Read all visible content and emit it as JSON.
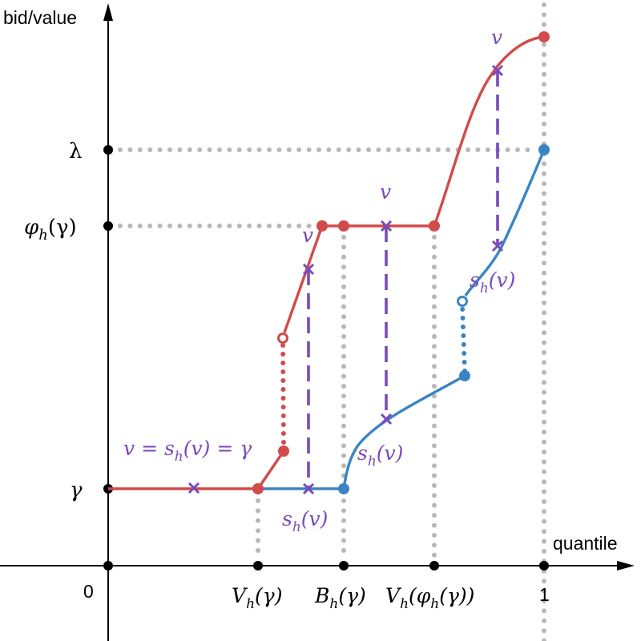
{
  "axes": {
    "y_label": "bid/value",
    "x_label": "quantile"
  },
  "y_ticks": {
    "lambda": "λ",
    "phi_h": "φ",
    "phi_sub": "h",
    "phi_arg": "(γ)",
    "gamma": "γ",
    "zero": "0"
  },
  "x_ticks": {
    "v_gamma": {
      "base": "V",
      "sub": "h",
      "arg": "(γ)"
    },
    "b_gamma": {
      "base": "B",
      "sub": "h",
      "arg": "(γ)"
    },
    "v_phi": {
      "base": "V",
      "sub": "h",
      "arg": "(φ",
      "arg_sub": "h",
      "arg_tail": "(γ))"
    },
    "one": "1"
  },
  "annotations": {
    "eq_left": "v = s",
    "eq_sub": "h",
    "eq_right": "(v) = γ",
    "v": "v",
    "s": "s",
    "s_sub": "h",
    "s_arg": "(v)"
  },
  "colors": {
    "red_curve": "#d24b4b",
    "blue_curve": "#3b84c4",
    "purple": "#7a4bb8",
    "grid": "#b8b8b8"
  }
}
